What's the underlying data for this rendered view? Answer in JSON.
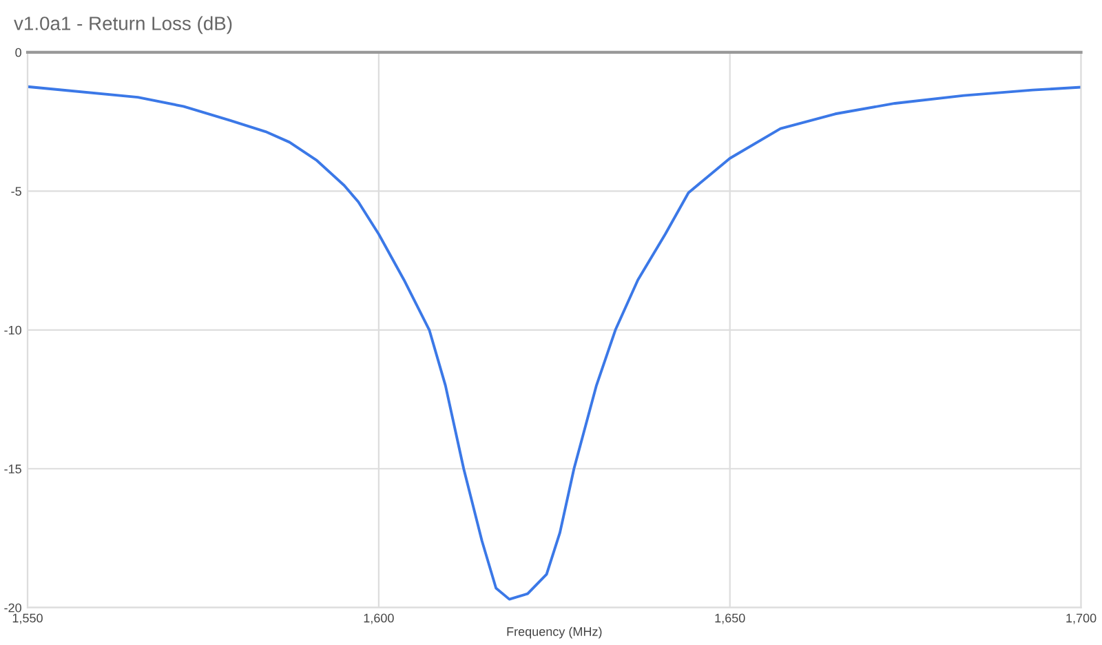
{
  "chart_data": {
    "type": "line",
    "title": "v1.0a1 - Return Loss (dB)",
    "xlabel": "Frequency (MHz)",
    "x": [
      1550,
      1565.7,
      1572.2,
      1578.8,
      1583.9,
      1587.3,
      1591.2,
      1595.1,
      1597.1,
      1600,
      1603.6,
      1607.2,
      1609.5,
      1612.1,
      1614.7,
      1616.7,
      1618.6,
      1621.2,
      1623.9,
      1625.8,
      1627.8,
      1631.0,
      1633.7,
      1636.9,
      1640.8,
      1644.1,
      1650,
      1657.2,
      1665.0,
      1673.5,
      1683.3,
      1693.1,
      1700
    ],
    "series": [
      {
        "color": "#3b78e7",
        "values": [
          -1.24,
          -1.62,
          -1.95,
          -2.45,
          -2.86,
          -3.24,
          -3.9,
          -4.8,
          -5.39,
          -6.55,
          -8.2,
          -10.0,
          -12.0,
          -15.0,
          -17.6,
          -19.3,
          -19.7,
          -19.5,
          -18.8,
          -17.3,
          -15.0,
          -12.0,
          -10.0,
          -8.2,
          -6.55,
          -5.06,
          -3.82,
          -2.75,
          -2.22,
          -1.84,
          -1.56,
          -1.36,
          -1.26
        ]
      }
    ],
    "xlim": [
      1550,
      1700
    ],
    "ylim": [
      -20,
      0
    ],
    "xticks": [
      {
        "value": 1550,
        "label": "1,550"
      },
      {
        "value": 1600,
        "label": "1,600"
      },
      {
        "value": 1650,
        "label": "1,650"
      },
      {
        "value": 1700,
        "label": "1,700"
      }
    ],
    "yticks": [
      -20,
      -15,
      -10,
      -5,
      0
    ],
    "grid": true,
    "marker": "none",
    "line_style": "solid"
  }
}
